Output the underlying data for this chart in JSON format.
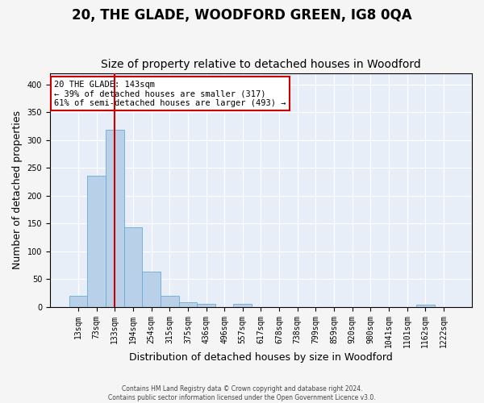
{
  "title": "20, THE GLADE, WOODFORD GREEN, IG8 0QA",
  "subtitle": "Size of property relative to detached houses in Woodford",
  "xlabel": "Distribution of detached houses by size in Woodford",
  "ylabel": "Number of detached properties",
  "footer_line1": "Contains HM Land Registry data © Crown copyright and database right 2024.",
  "footer_line2": "Contains public sector information licensed under the Open Government Licence v3.0.",
  "bin_labels": [
    "13sqm",
    "73sqm",
    "133sqm",
    "194sqm",
    "254sqm",
    "315sqm",
    "375sqm",
    "436sqm",
    "496sqm",
    "557sqm",
    "617sqm",
    "678sqm",
    "738sqm",
    "799sqm",
    "859sqm",
    "920sqm",
    "980sqm",
    "1041sqm",
    "1101sqm",
    "1162sqm",
    "1222sqm"
  ],
  "bar_heights": [
    20,
    236,
    318,
    143,
    63,
    20,
    8,
    5,
    0,
    5,
    0,
    0,
    0,
    0,
    0,
    0,
    0,
    0,
    0,
    4,
    0
  ],
  "bar_color": "#b8d0e8",
  "bar_edge_color": "#6aaad4",
  "vline_color": "#cc0000",
  "vline_x_index": 2,
  "annotation_text": "20 THE GLADE: 143sqm\n← 39% of detached houses are smaller (317)\n61% of semi-detached houses are larger (493) →",
  "annotation_box_edgecolor": "#cc0000",
  "ylim": [
    0,
    420
  ],
  "yticks": [
    0,
    50,
    100,
    150,
    200,
    250,
    300,
    350,
    400
  ],
  "background_color": "#e8eef8",
  "grid_color": "#ffffff",
  "fig_facecolor": "#f5f5f5",
  "title_fontsize": 12,
  "subtitle_fontsize": 10,
  "axis_label_fontsize": 9,
  "tick_fontsize": 7,
  "annotation_fontsize": 7.5
}
